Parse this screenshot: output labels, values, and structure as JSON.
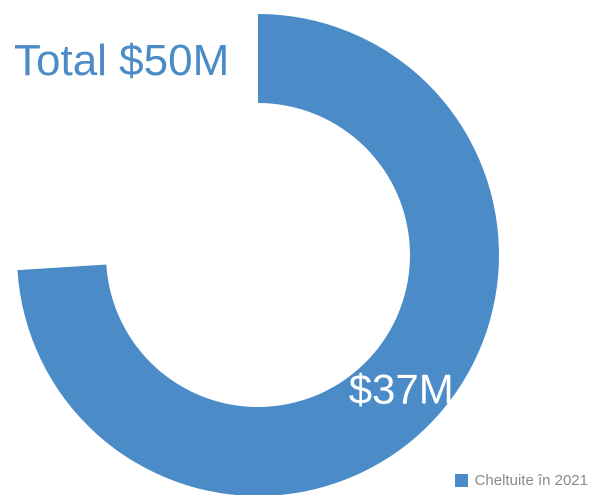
{
  "chart_data": {
    "type": "pie",
    "title": "",
    "total": 50,
    "total_label": "Total $50M",
    "series": [
      {
        "name": "Cheltuite în 2021",
        "value": 37,
        "label": "$37M",
        "color": "#4a8bc8"
      }
    ],
    "legend": "bottom-right"
  },
  "colors": {
    "accent": "#4a8bc8",
    "legend_text": "#8a8a8a",
    "background": "#ffffff"
  }
}
